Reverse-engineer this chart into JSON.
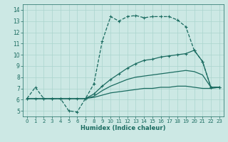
{
  "xlabel": "Humidex (Indice chaleur)",
  "bg_color": "#cce8e4",
  "line_color": "#1a6b60",
  "grid_color": "#aad4ce",
  "xlim": [
    -0.5,
    23.5
  ],
  "ylim": [
    4.5,
    14.5
  ],
  "xticks": [
    0,
    1,
    2,
    3,
    4,
    5,
    6,
    7,
    8,
    9,
    10,
    11,
    12,
    13,
    14,
    15,
    16,
    17,
    18,
    19,
    20,
    21,
    22,
    23
  ],
  "yticks": [
    5,
    6,
    7,
    8,
    9,
    10,
    11,
    12,
    13,
    14
  ],
  "series": [
    {
      "x": [
        0,
        1,
        2,
        3,
        4,
        5,
        6,
        7,
        8,
        9,
        10,
        11,
        12,
        13,
        14,
        15,
        16,
        17,
        18,
        19,
        20,
        21,
        22,
        23
      ],
      "y": [
        6.1,
        7.1,
        6.1,
        6.1,
        6.1,
        5.0,
        4.9,
        6.1,
        7.4,
        11.2,
        13.4,
        13.0,
        13.4,
        13.5,
        13.3,
        13.4,
        13.4,
        13.4,
        13.1,
        12.5,
        10.4,
        9.4,
        7.1,
        7.1
      ],
      "marker": "+",
      "linestyle": "--",
      "lw": 0.9
    },
    {
      "x": [
        0,
        1,
        2,
        3,
        4,
        5,
        6,
        7,
        8,
        9,
        10,
        11,
        12,
        13,
        14,
        15,
        16,
        17,
        18,
        19,
        20,
        21,
        22,
        23
      ],
      "y": [
        6.1,
        6.1,
        6.1,
        6.1,
        6.1,
        6.1,
        6.1,
        6.1,
        6.5,
        7.2,
        7.8,
        8.3,
        8.8,
        9.2,
        9.5,
        9.6,
        9.8,
        9.9,
        10.0,
        10.1,
        10.4,
        9.4,
        7.1,
        7.1
      ],
      "marker": "+",
      "linestyle": "-",
      "lw": 0.9
    },
    {
      "x": [
        0,
        1,
        2,
        3,
        4,
        5,
        6,
        7,
        8,
        9,
        10,
        11,
        12,
        13,
        14,
        15,
        16,
        17,
        18,
        19,
        20,
        21,
        22,
        23
      ],
      "y": [
        6.1,
        6.1,
        6.1,
        6.1,
        6.1,
        6.1,
        6.1,
        6.1,
        6.3,
        6.8,
        7.2,
        7.5,
        7.8,
        8.0,
        8.1,
        8.2,
        8.3,
        8.4,
        8.5,
        8.6,
        8.5,
        8.2,
        7.1,
        7.1
      ],
      "marker": null,
      "linestyle": "-",
      "lw": 0.9
    },
    {
      "x": [
        0,
        1,
        2,
        3,
        4,
        5,
        6,
        7,
        8,
        9,
        10,
        11,
        12,
        13,
        14,
        15,
        16,
        17,
        18,
        19,
        20,
        21,
        22,
        23
      ],
      "y": [
        6.1,
        6.1,
        6.1,
        6.1,
        6.1,
        6.1,
        6.1,
        6.1,
        6.2,
        6.4,
        6.6,
        6.7,
        6.8,
        6.9,
        7.0,
        7.0,
        7.1,
        7.1,
        7.2,
        7.2,
        7.1,
        7.0,
        7.0,
        7.1
      ],
      "marker": null,
      "linestyle": "-",
      "lw": 0.9
    }
  ]
}
